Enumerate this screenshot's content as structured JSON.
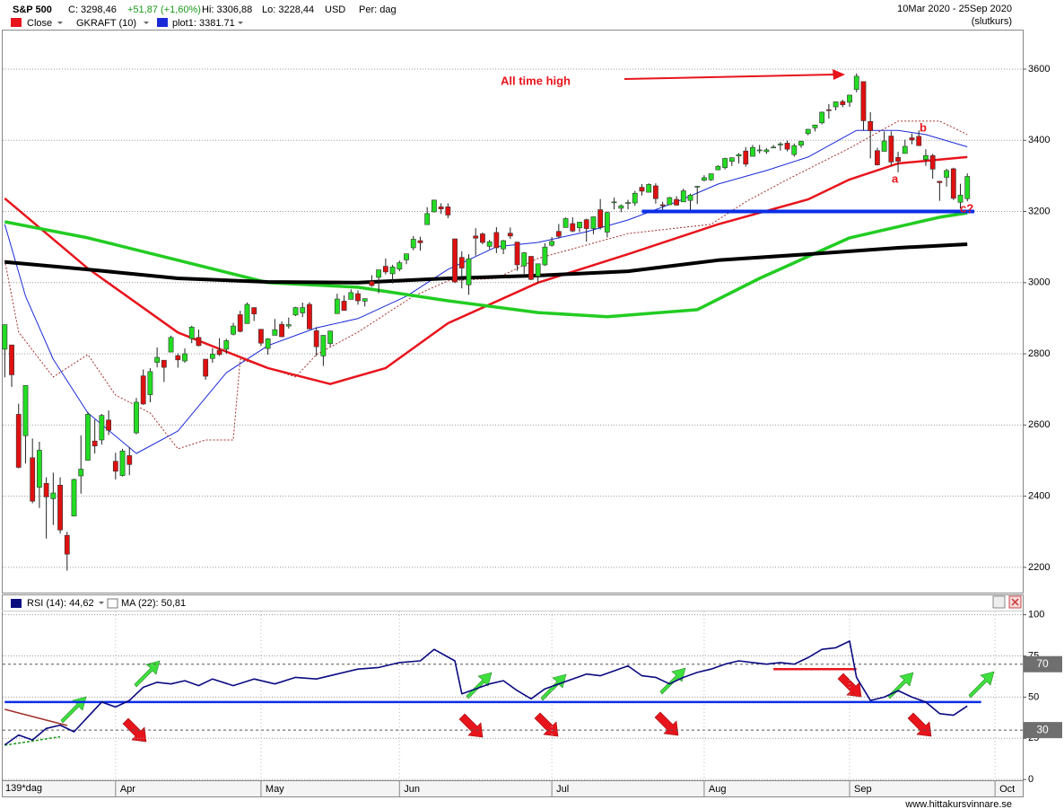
{
  "chart_data": [
    {
      "type": "candlestick",
      "title": "S&P 500",
      "info": [
        "C: 3298,46",
        "+51,87 (+1,60%)",
        "Hi: 3306,88",
        "Lo: 3228,44",
        "USD",
        "Per: dag"
      ],
      "period": "10Mar 2020 - 25Sep 2020",
      "price_basis": "(slutkurs)",
      "legend": [
        {
          "name": "Close",
          "color": "#e8141c"
        },
        {
          "name": "GKRAFT (10)"
        }
      ],
      "up_color": "#22dd22",
      "down_color": "#e01010",
      "x": [
        0,
        1,
        2,
        3,
        4,
        5,
        6,
        7,
        8,
        9,
        10,
        11,
        12,
        13,
        14,
        15,
        16,
        17,
        18,
        19,
        20,
        21,
        22,
        23,
        24,
        25,
        26,
        27,
        28,
        29,
        30,
        31,
        32,
        33,
        34,
        35,
        36,
        37,
        38,
        39,
        40,
        41,
        42,
        43,
        44,
        45,
        46,
        47,
        48,
        49,
        50,
        51,
        52,
        53,
        54,
        55,
        56,
        57,
        58,
        59,
        60,
        61,
        62,
        63,
        64,
        65,
        66,
        67,
        68,
        69,
        70,
        71,
        72,
        73,
        74,
        75,
        76,
        77,
        78,
        79,
        80,
        81,
        82,
        83,
        84,
        85,
        86,
        87,
        88,
        89,
        90,
        91,
        92,
        93,
        94,
        95,
        96,
        97,
        98,
        99,
        100,
        101,
        102,
        103,
        104,
        105,
        106,
        107,
        108,
        109,
        110,
        111,
        112,
        113,
        114,
        115,
        116,
        117,
        118,
        119,
        120,
        121,
        122,
        123,
        124,
        125,
        126,
        127,
        128,
        129,
        130,
        131,
        132,
        133,
        134,
        135,
        136,
        137,
        138,
        139
      ],
      "open": [
        2813,
        2825,
        2630,
        2570,
        2508,
        2425,
        2436,
        2393,
        2431,
        2290,
        2344,
        2457,
        2501,
        2555,
        2558,
        2614,
        2498,
        2458,
        2514,
        2578,
        2738,
        2685,
        2776,
        2782,
        2805,
        2795,
        2780,
        2843,
        2846,
        2785,
        2787,
        2810,
        2813,
        2855,
        2910,
        2885,
        2930,
        2869,
        2815,
        2852,
        2883,
        2878,
        2909,
        2915,
        2939,
        2865,
        2794,
        2829,
        2913,
        2948,
        2953,
        2969,
        2948,
        3004,
        3015,
        3046,
        3025,
        3038,
        3064,
        3098,
        3118,
        3163,
        3199,
        3213,
        3213,
        3123,
        3071,
        2994,
        3131,
        3137,
        3102,
        3141,
        3095,
        3139,
        3114,
        3047,
        3074,
        3018,
        3050,
        3105,
        3144,
        3155,
        3166,
        3154,
        3177,
        3152,
        3205,
        3142,
        3225,
        3209,
        3224,
        3224,
        3268,
        3254,
        3272,
        3219,
        3219,
        3234,
        3227,
        3231,
        3270,
        3288,
        3289,
        3317,
        3323,
        3341,
        3356,
        3370,
        3355,
        3372,
        3368,
        3380,
        3387,
        3392,
        3360,
        3386,
        3419,
        3435,
        3449,
        3486,
        3494,
        3509,
        3507,
        3543,
        3565,
        3453,
        3371,
        3369,
        3412,
        3352,
        3363,
        3407,
        3411,
        3346,
        3357,
        3285,
        3296,
        3320,
        3226,
        3236
      ],
      "high": [
        2882,
        2825,
        2660,
        2711,
        2562,
        2553,
        2453,
        2466,
        2453,
        2300,
        2449,
        2571,
        2637,
        2615,
        2631,
        2641,
        2522,
        2533,
        2538,
        2676,
        2756,
        2760,
        2818,
        2782,
        2851,
        2801,
        2815,
        2879,
        2868,
        2785,
        2816,
        2844,
        2842,
        2887,
        2921,
        2944,
        2930,
        2869,
        2844,
        2898,
        2891,
        2902,
        2932,
        2944,
        2945,
        2875,
        2852,
        2865,
        2969,
        2964,
        2981,
        2978,
        2956,
        3021,
        3036,
        3068,
        3050,
        3062,
        3081,
        3131,
        3129,
        3212,
        3233,
        3223,
        3223,
        3123,
        3088,
        3080,
        3153,
        3141,
        3120,
        3156,
        3120,
        3155,
        3115,
        3086,
        3074,
        3053,
        3111,
        3128,
        3165,
        3183,
        3184,
        3171,
        3180,
        3186,
        3235,
        3200,
        3239,
        3220,
        3233,
        3258,
        3277,
        3279,
        3279,
        3227,
        3241,
        3243,
        3264,
        3250,
        3272,
        3302,
        3306,
        3330,
        3351,
        3352,
        3364,
        3381,
        3387,
        3387,
        3378,
        3387,
        3395,
        3399,
        3391,
        3399,
        3432,
        3444,
        3481,
        3502,
        3509,
        3514,
        3528,
        3588,
        3565,
        3479,
        3379,
        3425,
        3425,
        3368,
        3402,
        3419,
        3428,
        3375,
        3362,
        3285,
        3320,
        3323,
        3278,
        3306.88
      ],
      "low": [
        2734,
        2707,
        2478,
        2492,
        2380,
        2367,
        2281,
        2319,
        2295,
        2191,
        2344,
        2407,
        2500,
        2520,
        2545,
        2572,
        2447,
        2455,
        2459,
        2574,
        2657,
        2664,
        2762,
        2721,
        2805,
        2761,
        2775,
        2830,
        2821,
        2727,
        2775,
        2794,
        2800,
        2852,
        2860,
        2885,
        2892,
        2822,
        2798,
        2852,
        2847,
        2871,
        2906,
        2903,
        2869,
        2794,
        2766,
        2821,
        2913,
        2922,
        2953,
        2938,
        2933,
        2988,
        2970,
        3023,
        2998,
        3032,
        3052,
        3091,
        3090,
        3163,
        3197,
        3193,
        3181,
        2999,
        2984,
        2966,
        3076,
        3108,
        3094,
        3083,
        3080,
        3123,
        3033,
        3025,
        3007,
        2999,
        3047,
        3101,
        3124,
        3155,
        3142,
        3142,
        3115,
        3136,
        3149,
        3127,
        3206,
        3198,
        3206,
        3216,
        3245,
        3254,
        3222,
        3201,
        3219,
        3216,
        3227,
        3205,
        3221,
        3284,
        3286,
        3317,
        3318,
        3328,
        3335,
        3326,
        3355,
        3363,
        3362,
        3379,
        3371,
        3369,
        3354,
        3379,
        3414,
        3425,
        3445,
        3461,
        3484,
        3493,
        3494,
        3535,
        3427,
        3349,
        3329,
        3369,
        3329,
        3310,
        3363,
        3389,
        3384,
        3328,
        3292,
        3230,
        3270,
        3232,
        3209,
        3228.44
      ],
      "close": [
        2882,
        2741,
        2481,
        2711,
        2386,
        2529,
        2398,
        2409,
        2305,
        2237,
        2447,
        2476,
        2630,
        2541,
        2627,
        2585,
        2470,
        2527,
        2489,
        2664,
        2659,
        2750,
        2790,
        2762,
        2846,
        2783,
        2800,
        2875,
        2823,
        2737,
        2799,
        2798,
        2837,
        2878,
        2863,
        2939,
        2912,
        2830,
        2842,
        2868,
        2848,
        2882,
        2930,
        2930,
        2870,
        2820,
        2852,
        2864,
        2954,
        2922,
        2972,
        2949,
        2955,
        2992,
        3036,
        3030,
        3044,
        3056,
        3081,
        3122,
        3112,
        3194,
        3232,
        3207,
        3190,
        3002,
        3041,
        3067,
        3125,
        3113,
        3115,
        3098,
        3118,
        3131,
        3050,
        3084,
        3009,
        3053,
        3100,
        3116,
        3130,
        3180,
        3145,
        3170,
        3152,
        3185,
        3155,
        3197,
        3227,
        3216,
        3225,
        3251,
        3257,
        3276,
        3236,
        3216,
        3239,
        3218,
        3258,
        3246,
        3271,
        3295,
        3306,
        3327,
        3349,
        3351,
        3360,
        3333,
        3380,
        3373,
        3373,
        3381,
        3390,
        3375,
        3385,
        3397,
        3431,
        3443,
        3479,
        3484,
        3508,
        3500,
        3527,
        3580,
        3455,
        3427,
        3331,
        3398,
        3339,
        3341,
        3383,
        3401,
        3385,
        3357,
        3319,
        3281,
        3315,
        3237,
        3246,
        3298.46
      ],
      "series": [
        {
          "name": "plot1: 3381.71",
          "color": "#1a2ad8",
          "width": 1,
          "x": [
            0,
            3,
            7,
            12,
            19,
            25,
            32,
            38,
            45,
            51,
            58,
            64,
            71,
            77,
            84,
            90,
            97,
            103,
            110,
            116,
            123,
            129,
            133,
            139
          ],
          "values": [
            3164,
            2962,
            2785,
            2634,
            2520,
            2583,
            2747,
            2823,
            2873,
            2899,
            2962,
            3037,
            3101,
            3113,
            3143,
            3176,
            3227,
            3277,
            3315,
            3353,
            3428,
            3428,
            3416,
            3381.71
          ]
        },
        {
          "color": "#a0302a",
          "width": 1,
          "dash": "2,2",
          "x": [
            0,
            2,
            5,
            7,
            12,
            16,
            21,
            25,
            29,
            33,
            34,
            42,
            45,
            51,
            59,
            64,
            71,
            77,
            90,
            102,
            107,
            113,
            122,
            129,
            135,
            139
          ],
          "values": [
            3063,
            2861,
            2785,
            2735,
            2798,
            2684,
            2634,
            2533,
            2558,
            2558,
            2785,
            2735,
            2798,
            2861,
            2962,
            3005,
            3012,
            3068,
            3138,
            3164,
            3227,
            3290,
            3378,
            3454,
            3454,
            3416
          ]
        },
        {
          "color": "#e8141c",
          "width": 2.5,
          "x": [
            0,
            12,
            25,
            38,
            47,
            55,
            64,
            77,
            90,
            103,
            116,
            122,
            129,
            139
          ],
          "values": [
            3237,
            3040,
            2860,
            2760,
            2715,
            2760,
            2886,
            3000,
            3080,
            3164,
            3234,
            3290,
            3335,
            3353
          ]
        },
        {
          "color": "#22cc22",
          "width": 3.5,
          "x": [
            0,
            12,
            25,
            38,
            51,
            64,
            77,
            87,
            100,
            109,
            122,
            135,
            139
          ],
          "values": [
            3171,
            3126,
            3063,
            3000,
            2987,
            2949,
            2916,
            2904,
            2924,
            3012,
            3126,
            3184,
            3196
          ]
        },
        {
          "color": "#000000",
          "width": 4,
          "x": [
            0,
            12,
            25,
            38,
            51,
            64,
            77,
            90,
            103,
            116,
            129,
            139
          ],
          "values": [
            3058,
            3037,
            3012,
            3002,
            3000,
            3012,
            3020,
            3032,
            3063,
            3080,
            3098,
            3108
          ]
        }
      ],
      "support": {
        "value": 3200,
        "x": [
          92,
          140
        ],
        "color": "#0a2ee6"
      },
      "annotations": [
        "All time high",
        "a",
        "b",
        "c?"
      ],
      "ylim": [
        2129,
        3711
      ],
      "yticks": [
        2200,
        2400,
        2600,
        2800,
        3000,
        3200,
        3400,
        3600
      ],
      "xlim": [
        -0.3,
        147
      ],
      "grid": true
    },
    {
      "type": "line",
      "legend": [
        {
          "name": "RSI (14): 44,62",
          "color": "#0a0a80"
        },
        {
          "name": "MA (22): 50,81"
        }
      ],
      "color": "#0a0a80",
      "x": [
        0,
        2,
        4,
        6,
        8,
        10,
        12,
        14,
        16,
        18,
        20,
        22,
        24,
        26,
        28,
        30,
        33,
        36,
        39,
        42,
        45,
        48,
        51,
        54,
        57,
        60,
        62,
        65,
        66,
        68,
        70,
        72,
        74,
        76,
        78,
        80,
        82,
        84,
        86,
        88,
        90,
        92,
        94,
        96,
        98,
        100,
        102,
        104,
        106,
        108,
        110,
        112,
        114,
        116,
        118,
        120,
        122,
        123,
        125,
        127,
        129,
        131,
        133,
        135,
        137,
        139
      ],
      "values": [
        21,
        27,
        24,
        31,
        33,
        29,
        38,
        47,
        44,
        48,
        56,
        59,
        58,
        60,
        57,
        61,
        57,
        61,
        58,
        62,
        61,
        64,
        67,
        68,
        71,
        72,
        79,
        72,
        52,
        55,
        58,
        60,
        54,
        49,
        55,
        58,
        61,
        64,
        63,
        66,
        69,
        63,
        62,
        58,
        62,
        65,
        67,
        70,
        72,
        71,
        70,
        71,
        70,
        74,
        79,
        80,
        84,
        62,
        48,
        50,
        54,
        50,
        47,
        40,
        39,
        44.62
      ],
      "levels": [
        70,
        30
      ],
      "trend_lines": [
        {
          "color": "#0a2ee6",
          "x": [
            0,
            141
          ],
          "values": [
            47,
            47
          ]
        },
        {
          "color": "#e8141c",
          "x": [
            111,
            123
          ],
          "values": [
            67,
            67
          ]
        },
        {
          "color": "#a0302a",
          "x": [
            0,
            9
          ],
          "values": [
            42.6,
            32.8
          ]
        },
        {
          "color": "#1a9a1a",
          "x": [
            0,
            8
          ],
          "values": [
            20.8,
            26
          ]
        }
      ],
      "ylim": [
        -1,
        102
      ],
      "yticks": [
        0,
        25,
        50,
        75,
        100
      ],
      "xlim": [
        -0.3,
        147
      ],
      "xticks": [
        {
          "value": 16,
          "label": "Apr"
        },
        {
          "value": 37,
          "label": "May"
        },
        {
          "value": 57,
          "label": "Jun"
        },
        {
          "value": 79,
          "label": "Jul"
        },
        {
          "value": 101,
          "label": "Aug"
        },
        {
          "value": 122,
          "label": "Sep"
        },
        {
          "value": 143,
          "label": "Oct"
        }
      ],
      "grid": true
    }
  ],
  "footer": {
    "period_count": "139*dag",
    "source": "www.hittakursvinnare.se"
  }
}
